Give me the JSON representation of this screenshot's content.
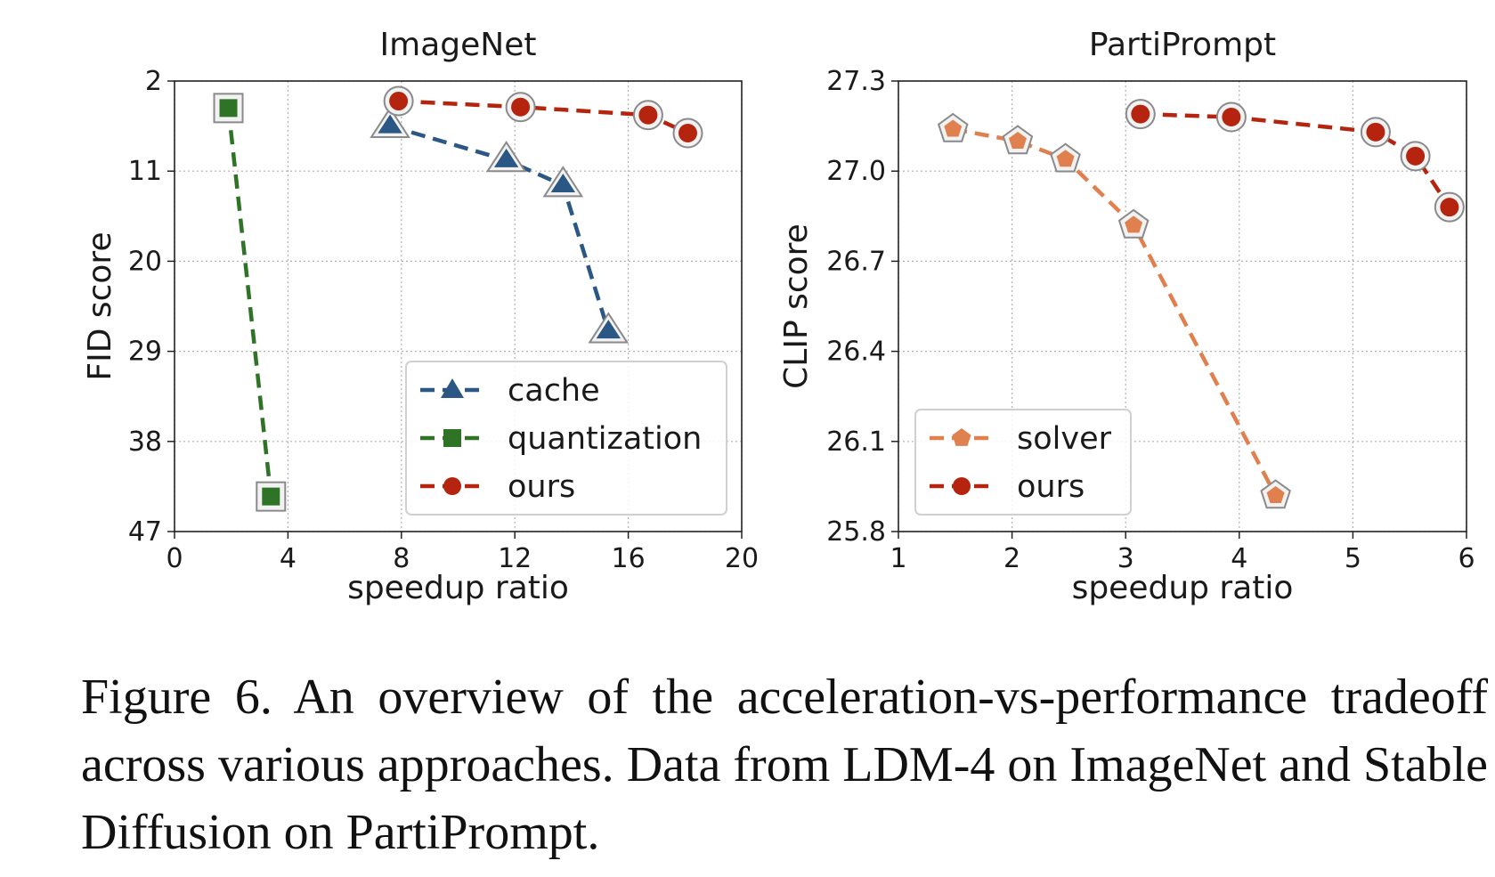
{
  "chart_data": [
    {
      "type": "line",
      "title": "ImageNet",
      "xlabel": "speedup ratio",
      "ylabel": "FID score",
      "xlim": [
        0,
        20
      ],
      "ylim": [
        2,
        47
      ],
      "y_inverted": true,
      "xticks": [
        "0",
        "4",
        "8",
        "12",
        "16",
        "20"
      ],
      "yticks": [
        "2",
        "11",
        "20",
        "29",
        "38",
        "47"
      ],
      "grid": true,
      "legend_position": "lower-right",
      "series": [
        {
          "name": "cache",
          "color": "#2a5783",
          "marker": "triangle",
          "points": [
            [
              7.6,
              6.5
            ],
            [
              11.7,
              9.9
            ],
            [
              13.7,
              12.4
            ],
            [
              15.3,
              27.0
            ]
          ]
        },
        {
          "name": "quantization",
          "color": "#2f7327",
          "marker": "square",
          "points": [
            [
              1.9,
              4.7
            ],
            [
              3.4,
              43.5
            ]
          ]
        },
        {
          "name": "ours",
          "color": "#b5240f",
          "marker": "circle",
          "points": [
            [
              7.9,
              4.0
            ],
            [
              12.2,
              4.6
            ],
            [
              16.7,
              5.4
            ],
            [
              18.1,
              7.2
            ]
          ]
        }
      ]
    },
    {
      "type": "line",
      "title": "PartiPrompt",
      "xlabel": "speedup ratio",
      "ylabel": "CLIP score",
      "xlim": [
        1,
        6
      ],
      "ylim": [
        25.8,
        27.3
      ],
      "xticks": [
        "1",
        "2",
        "3",
        "4",
        "5",
        "6"
      ],
      "yticks": [
        "25.8",
        "26.1",
        "26.4",
        "26.7",
        "27.0",
        "27.3"
      ],
      "grid": true,
      "legend_position": "lower-left",
      "series": [
        {
          "name": "solver",
          "color": "#e0804f",
          "marker": "pentagon",
          "points": [
            [
              1.48,
              27.14
            ],
            [
              2.05,
              27.1
            ],
            [
              2.47,
              27.04
            ],
            [
              3.07,
              26.82
            ],
            [
              4.32,
              25.92
            ]
          ]
        },
        {
          "name": "ours",
          "color": "#b5240f",
          "marker": "circle",
          "points": [
            [
              3.13,
              27.19
            ],
            [
              3.93,
              27.18
            ],
            [
              5.2,
              27.13
            ],
            [
              5.55,
              27.05
            ],
            [
              5.85,
              26.88
            ]
          ]
        }
      ]
    }
  ],
  "caption": "Figure 6. An overview of the acceleration-vs-performance tradeoff across various approaches. Data from LDM-4 on ImageNet and Stable Diffusion on PartiPrompt."
}
